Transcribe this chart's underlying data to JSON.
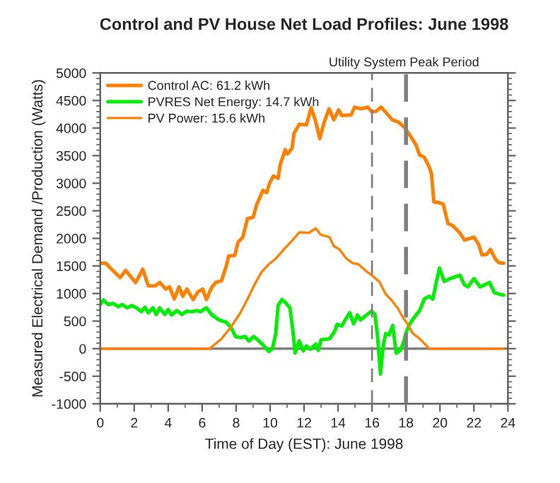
{
  "chart_data": {
    "type": "line",
    "title": "Control and PV House Net Load Profiles: June 1998",
    "xlabel": "Time of Day (EST): June 1998",
    "ylabel": "Measured Electrical Demand /Production (Watts)",
    "annotations": [
      "Utility System Peak Period"
    ],
    "xlim": [
      0,
      24
    ],
    "xticks": [
      0,
      2,
      4,
      6,
      8,
      10,
      12,
      14,
      16,
      18,
      20,
      22,
      24
    ],
    "ylim": [
      -1000,
      5000
    ],
    "yticks": [
      -1000,
      -500,
      0,
      500,
      1000,
      1500,
      2000,
      2500,
      3000,
      3500,
      4000,
      4500,
      5000
    ],
    "grid": false,
    "legend": "top left",
    "ref_lines": [
      {
        "axis": "y",
        "value": 0,
        "color": "#808080"
      },
      {
        "axis": "x",
        "value": 16,
        "color": "#808080",
        "line_style": "dashed"
      },
      {
        "axis": "x",
        "value": 18,
        "color": "#808080",
        "line_style": "dashed"
      }
    ],
    "series": [
      {
        "name": "Control AC: 61.2 kWh",
        "color": "#ff8000",
        "x": [
          0,
          0.33,
          0.6,
          1.17,
          1.5,
          1.83,
          2.08,
          2.28,
          2.5,
          2.83,
          3.25,
          3.5,
          3.86,
          4.08,
          4.36,
          4.64,
          4.86,
          5.1,
          5.47,
          5.75,
          6.03,
          6.25,
          6.44,
          6.58,
          6.8,
          7.14,
          7.42,
          7.56,
          7.92,
          8.11,
          8.39,
          8.67,
          9.0,
          9.22,
          9.58,
          9.8,
          9.97,
          10.19,
          10.47,
          10.6,
          10.89,
          11.03,
          11.3,
          11.4,
          11.72,
          12.14,
          12.42,
          12.69,
          12.92,
          13.19,
          13.47,
          13.75,
          14.03,
          14.22,
          14.78,
          14.97,
          15.33,
          15.75,
          15.97,
          16.22,
          16.53,
          16.86,
          17.19,
          17.56,
          17.92,
          18.25,
          18.58,
          18.8,
          19.08,
          19.36,
          19.5,
          19.64,
          19.92,
          20.19,
          20.47,
          20.75,
          21.17,
          21.44,
          22.0,
          22.28,
          22.47,
          22.75,
          22.97,
          23.25,
          23.47,
          23.75
        ],
        "values": [
          1550,
          1550,
          1460,
          1290,
          1420,
          1290,
          1200,
          1310,
          1440,
          1140,
          1140,
          1200,
          1080,
          1120,
          900,
          1120,
          950,
          1080,
          890,
          1030,
          1080,
          890,
          1030,
          1120,
          1200,
          1230,
          1500,
          1680,
          1690,
          1930,
          2020,
          2360,
          2380,
          2620,
          2870,
          2830,
          3000,
          3130,
          3090,
          3340,
          3610,
          3530,
          3640,
          3900,
          4070,
          4060,
          4370,
          4110,
          3810,
          4110,
          4350,
          4150,
          4330,
          4230,
          4240,
          4380,
          4350,
          4380,
          4300,
          4300,
          4380,
          4270,
          4150,
          4110,
          4010,
          3860,
          3700,
          3510,
          3470,
          3300,
          3170,
          2660,
          2650,
          2620,
          2270,
          2230,
          2100,
          1970,
          2020,
          1890,
          1700,
          1710,
          1800,
          1630,
          1560,
          1550
        ]
      },
      {
        "name": "PVRES Net Energy: 14.7 kWh",
        "color": "#00ee00",
        "x": [
          0,
          0.19,
          0.47,
          0.75,
          1.08,
          1.3,
          1.58,
          1.86,
          2.14,
          2.42,
          2.64,
          2.83,
          3.1,
          3.3,
          3.5,
          3.8,
          4.0,
          4.2,
          4.5,
          4.8,
          5.1,
          5.4,
          5.7,
          5.9,
          6.25,
          6.58,
          7.0,
          7.4,
          7.69,
          7.97,
          8.25,
          8.53,
          8.75,
          9.03,
          9.3,
          9.64,
          9.92,
          10.14,
          10.33,
          10.47,
          10.69,
          10.89,
          11.17,
          11.36,
          11.47,
          11.72,
          11.95,
          12.14,
          12.36,
          12.69,
          12.83,
          13.0,
          13.5,
          13.8,
          13.94,
          14.22,
          14.42,
          14.69,
          14.92,
          15.14,
          15.33,
          15.6,
          15.97,
          16.17,
          16.31,
          16.5,
          16.64,
          16.8,
          17.0,
          17.22,
          17.42,
          17.64,
          17.83,
          18.03,
          18.2,
          18.47,
          18.8,
          19.08,
          19.36,
          19.58,
          19.78,
          19.97,
          20.25,
          20.6,
          20.97,
          21.17,
          21.44,
          21.64,
          22.0,
          22.36,
          22.64,
          22.92,
          23.19,
          23.47,
          23.75
        ],
        "values": [
          800,
          880,
          800,
          820,
          760,
          800,
          740,
          780,
          740,
          670,
          750,
          650,
          740,
          620,
          740,
          620,
          710,
          610,
          690,
          620,
          680,
          670,
          690,
          670,
          740,
          610,
          520,
          480,
          390,
          220,
          200,
          220,
          140,
          220,
          150,
          50,
          -50,
          0,
          270,
          780,
          890,
          840,
          740,
          270,
          -80,
          140,
          -40,
          50,
          -10,
          80,
          -30,
          160,
          180,
          310,
          440,
          410,
          520,
          650,
          450,
          610,
          520,
          590,
          680,
          620,
          270,
          -460,
          10,
          270,
          250,
          420,
          -80,
          -40,
          90,
          310,
          440,
          560,
          690,
          900,
          950,
          900,
          1200,
          1460,
          1220,
          1270,
          1310,
          1330,
          1160,
          1120,
          1270,
          1120,
          1160,
          1200,
          1020,
          990,
          970
        ]
      },
      {
        "name": "PV Power: 15.6 kWh",
        "color": "#ff8000",
        "x": [
          0,
          6.44,
          7.14,
          7.69,
          8.25,
          8.67,
          9.08,
          9.5,
          9.92,
          10.33,
          10.75,
          11.3,
          11.72,
          12.28,
          12.69,
          12.97,
          13.5,
          13.75,
          14.08,
          14.5,
          14.86,
          15.2,
          15.6,
          16.03,
          16.44,
          16.8,
          17.14,
          17.5,
          17.83,
          18.1,
          18.39,
          18.8,
          19.22,
          19.36,
          23.75
        ],
        "values": [
          0,
          0,
          180,
          390,
          650,
          900,
          1160,
          1390,
          1530,
          1630,
          1780,
          1960,
          2110,
          2100,
          2180,
          2070,
          2020,
          1860,
          1800,
          1630,
          1550,
          1530,
          1420,
          1320,
          1210,
          990,
          880,
          740,
          560,
          440,
          280,
          180,
          50,
          0,
          0
        ]
      }
    ]
  }
}
